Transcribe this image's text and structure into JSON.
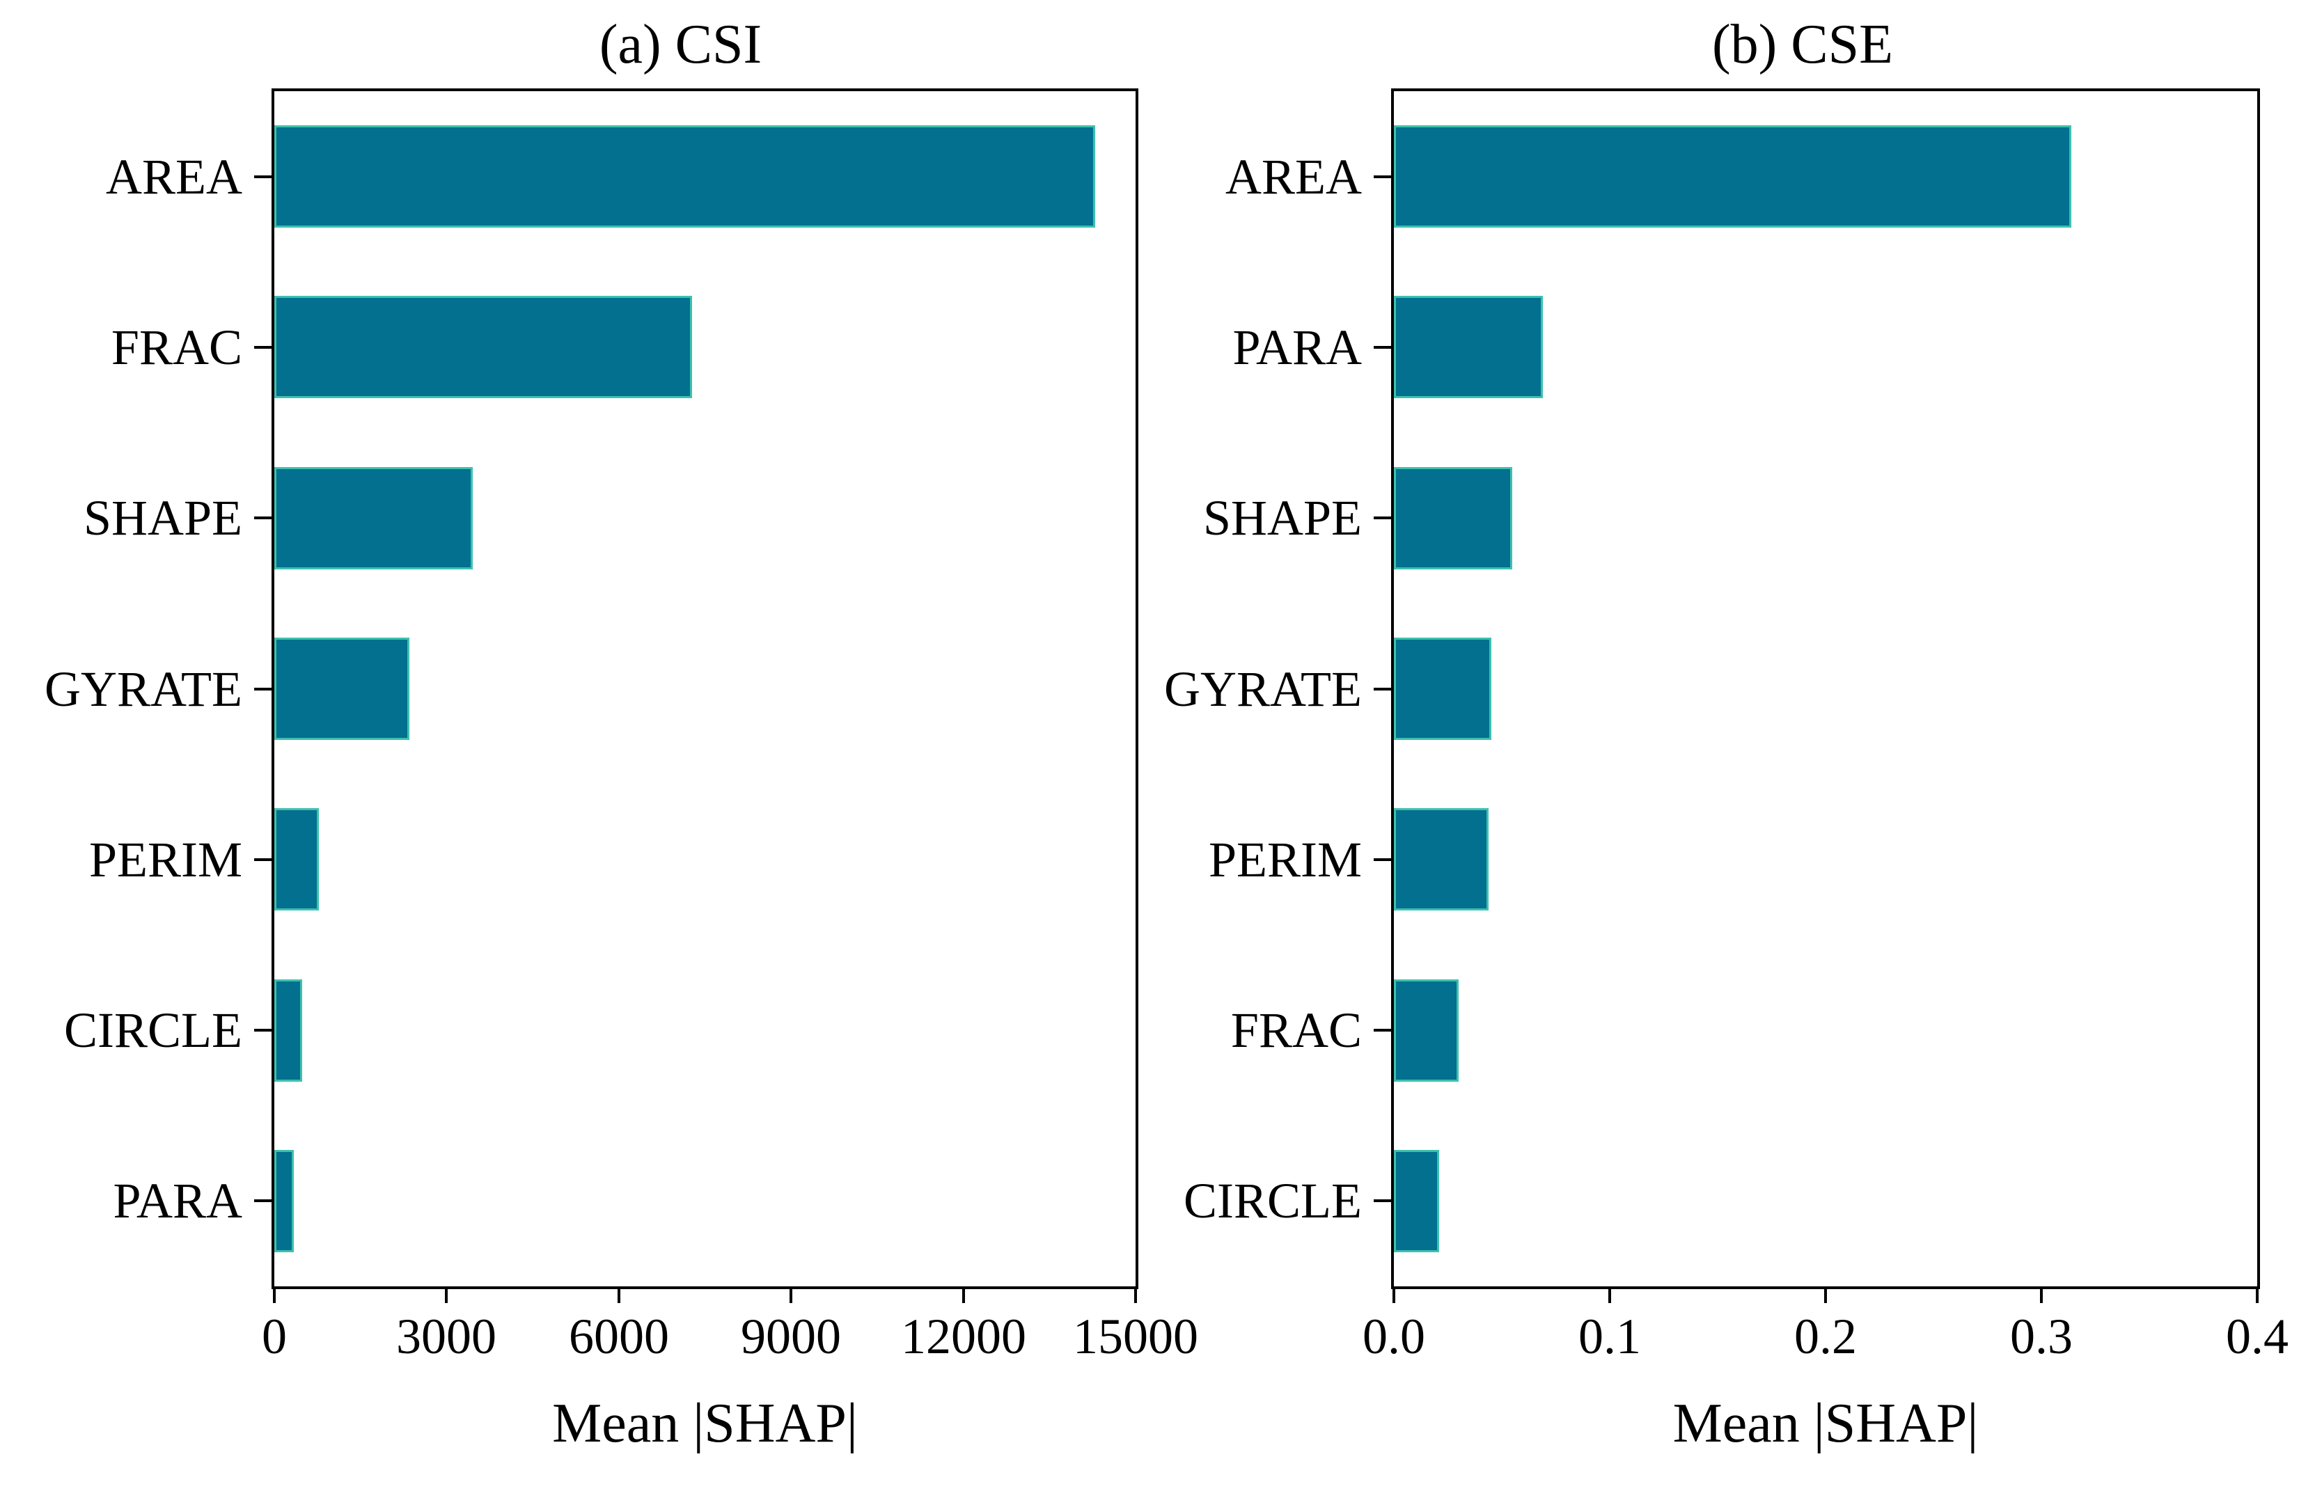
{
  "figure": {
    "background": "#ffffff",
    "bar_fill_color": "#02708E",
    "bar_edge_color": "#3EC0AE",
    "axis_color": "#000000",
    "text_color": "#000000"
  },
  "chart_data": [
    {
      "id": "csi",
      "type": "bar",
      "orientation": "horizontal",
      "title": "(a) CSI",
      "xlabel": "Mean |SHAP|",
      "categories": [
        "AREA",
        "FRAC",
        "SHAPE",
        "GYRATE",
        "PERIM",
        "CIRCLE",
        "PARA"
      ],
      "values": [
        14300,
        7280,
        3450,
        2350,
        780,
        480,
        340
      ],
      "xlim": [
        0,
        15000
      ],
      "xticks": [
        {
          "value": 0,
          "label": "0"
        },
        {
          "value": 3000,
          "label": "3000"
        },
        {
          "value": 6000,
          "label": "6000"
        },
        {
          "value": 9000,
          "label": "9000"
        },
        {
          "value": 12000,
          "label": "12000"
        },
        {
          "value": 15000,
          "label": "15000"
        }
      ],
      "grid": false,
      "legend": null
    },
    {
      "id": "cse",
      "type": "bar",
      "orientation": "horizontal",
      "title": "(b) CSE",
      "xlabel": "Mean |SHAP|",
      "categories": [
        "AREA",
        "PARA",
        "SHAPE",
        "GYRATE",
        "PERIM",
        "FRAC",
        "CIRCLE"
      ],
      "values": [
        0.314,
        0.069,
        0.055,
        0.045,
        0.044,
        0.03,
        0.021
      ],
      "xlim": [
        0,
        0.4
      ],
      "xticks": [
        {
          "value": 0.0,
          "label": "0.0"
        },
        {
          "value": 0.1,
          "label": "0.1"
        },
        {
          "value": 0.2,
          "label": "0.2"
        },
        {
          "value": 0.3,
          "label": "0.3"
        },
        {
          "value": 0.4,
          "label": "0.4"
        }
      ],
      "grid": false,
      "legend": null
    }
  ]
}
